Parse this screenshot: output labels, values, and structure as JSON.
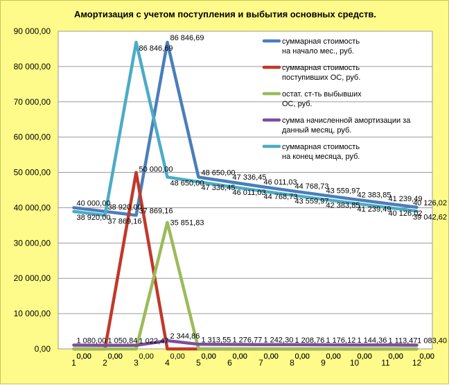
{
  "chart_data": {
    "type": "line",
    "title": "Амортизация с учетом поступления и выбытия основных средств.",
    "xlabel": "",
    "ylabel": "",
    "categories": [
      "1",
      "2",
      "3",
      "4",
      "5",
      "6",
      "7",
      "8",
      "9",
      "10",
      "11",
      "12"
    ],
    "ylim": [
      0,
      90000
    ],
    "yticks": [
      "0,00",
      "10 000,00",
      "20 000,00",
      "30 000,00",
      "40 000,00",
      "50 000,00",
      "60 000,00",
      "70 000,00",
      "80 000,00",
      "90 000,00"
    ],
    "grid": "horizontal",
    "legend": "top-right",
    "background_color": "#fffb8a",
    "plot_color": "#ffffff",
    "series": [
      {
        "legend": [
          "суммарная стоимость",
          "на начало мес., руб."
        ],
        "color": "#4a7ebb",
        "values": [
          40000,
          38920,
          37869.16,
          86846.69,
          48650,
          47336.45,
          46011.03,
          44768.73,
          43559.97,
          42383.85,
          41239.49,
          40126.02
        ],
        "labels": [
          "40 000,00",
          "38 920,00",
          "37 869,16",
          "86 846,69",
          "48 650,00",
          "47 336,45",
          "46 011,03",
          "44 768,73",
          "43 559,97",
          "42 383,85",
          "41 239,49",
          "40 126,02"
        ]
      },
      {
        "legend": [
          "суммарная стоимость",
          "поступивших ОС, руб."
        ],
        "color": "#c0392b",
        "values": [
          0,
          0,
          50000,
          0,
          0,
          0,
          0,
          0,
          0,
          0,
          0,
          0
        ],
        "labels": [
          "0,00",
          "0,00",
          "50 000,00",
          "0,00",
          "0,00",
          "0,00",
          "0,00",
          "0,00",
          "0,00",
          "0,00",
          "0,00",
          "0,00"
        ]
      },
      {
        "legend": [
          "остат. ст-ть выбывших",
          "ОС, руб."
        ],
        "color": "#9bbb59",
        "values": [
          0,
          0,
          0,
          35851.83,
          0,
          0,
          0,
          0,
          0,
          0,
          0,
          0
        ],
        "labels": [
          "0,00",
          "0,00",
          "0,00",
          "35 851,83",
          "0,00",
          "0,00",
          "0,00",
          "0,00",
          "0,00",
          "0,00",
          "0,00",
          "0,00"
        ]
      },
      {
        "legend": [
          "сумма начисленной амортизации за",
          "данный месяц, руб."
        ],
        "color": "#7b4e9e",
        "values": [
          1080,
          1050.84,
          1022.47,
          2344.86,
          1313.55,
          1276.77,
          1242.3,
          1208.76,
          1176.12,
          1144.36,
          1113.47,
          1083.4
        ],
        "labels": [
          "1 080,00",
          "1 050,84",
          "1 022,47",
          "2 344,86",
          "1 313,55",
          "1 276,77",
          "1 242,30",
          "1 208,76",
          "1 176,12",
          "1 144,36",
          "1 113,47",
          "1 083,40"
        ]
      },
      {
        "legend": [
          "суммарная стоимость",
          "на конец месяца, руб."
        ],
        "color": "#4bacc6",
        "values": [
          38920,
          37869.16,
          86846.69,
          48650,
          47336.45,
          46011.03,
          44768.73,
          43559.97,
          42383.85,
          41239.49,
          40126.02,
          39042.62
        ],
        "labels": [
          "38 920,00",
          "37 869,16",
          "86 846,69",
          "48 650,00",
          "47 336,45",
          "46 011,03",
          "44 768,73",
          "43 559,97",
          "42 383,85",
          "41 239,49",
          "40 126,02",
          "39 042,62"
        ]
      }
    ]
  }
}
